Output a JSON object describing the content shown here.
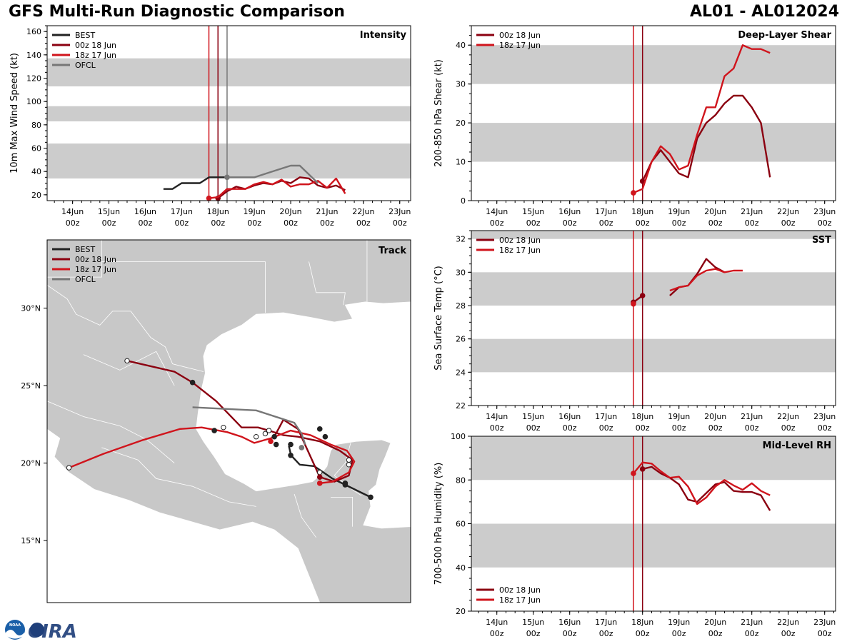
{
  "header": {
    "title": "GFS Multi-Run Diagnostic Comparison",
    "storm": "AL01 - AL012024"
  },
  "colors": {
    "best": "#222222",
    "run_00z": "#8b0010",
    "run_18z": "#d0141c",
    "ofcl": "#777777",
    "band": "#cccccc",
    "land": "#c8c8c8"
  },
  "time_ticks": {
    "day_labels": [
      "14Jun",
      "15Jun",
      "16Jun",
      "17Jun",
      "18Jun",
      "19Jun",
      "20Jun",
      "21Jun",
      "22Jun",
      "23Jun"
    ],
    "hour_label": "00z"
  },
  "logo": {
    "text": "CIRA",
    "seal_text": "NOAA"
  },
  "chart_data": [
    {
      "id": "intensity",
      "type": "line",
      "title": "Intensity",
      "ylabel": "10m Max Wind Speed (kt)",
      "xlim": [
        -0.7,
        9.3
      ],
      "ylim": [
        15,
        165
      ],
      "yticks": [
        20,
        40,
        60,
        80,
        100,
        120,
        140,
        160
      ],
      "bands": [
        [
          34,
          64
        ],
        [
          83,
          96
        ],
        [
          113,
          137
        ]
      ],
      "vlines": [
        {
          "x": 3.75,
          "series": "18z 17 Jun"
        },
        {
          "x": 4.0,
          "series": "00z 18 Jun"
        },
        {
          "x": 4.25,
          "series": "OFCL"
        }
      ],
      "legend": [
        "BEST",
        "00z 18 Jun",
        "18z 17 Jun",
        "OFCL"
      ],
      "series": [
        {
          "name": "BEST",
          "color_key": "best",
          "x": [
            2.5,
            2.75,
            3.0,
            3.25,
            3.5,
            3.75,
            4.0,
            4.25
          ],
          "y": [
            25,
            25,
            30,
            30,
            30,
            35,
            35,
            35
          ]
        },
        {
          "name": "00z 18 Jun",
          "color_key": "run_00z",
          "x": [
            4.0,
            4.25,
            4.5,
            4.75,
            5.0,
            5.25,
            5.5,
            5.75,
            6.0,
            6.25,
            6.5,
            6.75,
            7.0,
            7.25,
            7.5
          ],
          "y": [
            17,
            23,
            27,
            25,
            28,
            30,
            29,
            32,
            30,
            35,
            34,
            28,
            26,
            28,
            24
          ],
          "marker": 17
        },
        {
          "name": "18z 17 Jun",
          "color_key": "run_18z",
          "x": [
            3.75,
            4.0,
            4.25,
            4.5,
            4.75,
            5.0,
            5.25,
            5.5,
            5.75,
            6.0,
            6.25,
            6.5,
            6.75,
            7.0,
            7.25,
            7.5
          ],
          "y": [
            17,
            18,
            25,
            25,
            25,
            29,
            31,
            29,
            33,
            27,
            29,
            29,
            32,
            26,
            34,
            21
          ],
          "marker": 17
        },
        {
          "name": "OFCL",
          "color_key": "ofcl",
          "x": [
            4.25,
            4.5,
            5.0,
            5.5,
            6.0,
            6.25,
            6.75
          ],
          "y": [
            35,
            35,
            35,
            40,
            45,
            45,
            30
          ],
          "marker": 35
        }
      ]
    },
    {
      "id": "shear",
      "type": "line",
      "title": "Deep-Layer Shear",
      "ylabel": "200-850 hPa Shear (kt)",
      "xlim": [
        -0.7,
        9.3
      ],
      "ylim": [
        0,
        45
      ],
      "yticks": [
        0,
        10,
        20,
        30,
        40
      ],
      "bands": [
        [
          10,
          20
        ],
        [
          30,
          40
        ]
      ],
      "vlines": [
        {
          "x": 3.75,
          "series": "18z 17 Jun"
        },
        {
          "x": 4.0,
          "series": "00z 18 Jun"
        }
      ],
      "legend": [
        "00z 18 Jun",
        "18z 17 Jun"
      ],
      "series": [
        {
          "name": "00z 18 Jun",
          "color_key": "run_00z",
          "x": [
            4.0,
            4.25,
            4.5,
            4.75,
            5.0,
            5.25,
            5.5,
            5.75,
            6.0,
            6.25,
            6.5,
            6.75,
            7.0,
            7.25,
            7.5
          ],
          "y": [
            5,
            10,
            13,
            10,
            7,
            6,
            16,
            20,
            22,
            25,
            27,
            27,
            24,
            20,
            6
          ],
          "marker": 5
        },
        {
          "name": "18z 17 Jun",
          "color_key": "run_18z",
          "x": [
            3.75,
            4.0,
            4.25,
            4.5,
            4.75,
            5.0,
            5.25,
            5.5,
            5.75,
            6.0,
            6.25,
            6.5,
            6.75,
            7.0,
            7.25,
            7.5
          ],
          "y": [
            2,
            3,
            10,
            14,
            12,
            8,
            9,
            17,
            24,
            24,
            32,
            34,
            40,
            39,
            39,
            38
          ],
          "marker": 2
        }
      ]
    },
    {
      "id": "sst",
      "type": "line",
      "title": "SST",
      "ylabel": "Sea Surface Temp (°C)",
      "xlim": [
        -0.7,
        9.3
      ],
      "ylim": [
        22,
        32.5
      ],
      "yticks": [
        22,
        24,
        26,
        28,
        30,
        32
      ],
      "bands": [
        [
          24,
          26
        ],
        [
          28,
          30
        ],
        [
          32,
          34
        ]
      ],
      "vlines": [
        {
          "x": 3.75,
          "series": "18z 17 Jun"
        },
        {
          "x": 4.0,
          "series": "00z 18 Jun"
        }
      ],
      "legend": [
        "00z 18 Jun",
        "18z 17 Jun"
      ],
      "series": [
        {
          "name": "00z 18 Jun",
          "color_key": "run_00z",
          "x": [
            3.75,
            4.0
          ],
          "y": [
            28.2,
            28.6
          ],
          "markers": true
        },
        {
          "name": "00z 18 Jun",
          "color_key": "run_00z",
          "x": [
            4.75,
            5.0,
            5.25,
            5.5,
            5.75,
            6.0,
            6.25
          ],
          "y": [
            28.6,
            29.1,
            29.2,
            29.9,
            30.8,
            30.3,
            30.0
          ]
        },
        {
          "name": "18z 17 Jun",
          "color_key": "run_18z",
          "x": [
            3.75
          ],
          "y": [
            28.1
          ],
          "markers": true
        },
        {
          "name": "18z 17 Jun",
          "color_key": "run_18z",
          "x": [
            4.75,
            5.0,
            5.25,
            5.5,
            5.75,
            6.0,
            6.25,
            6.5,
            6.75
          ],
          "y": [
            28.9,
            29.1,
            29.2,
            29.8,
            30.1,
            30.2,
            30.0,
            30.1,
            30.1
          ]
        }
      ]
    },
    {
      "id": "rh",
      "type": "line",
      "title": "Mid-Level RH",
      "ylabel": "700-500 hPa Humidity (%)",
      "xlim": [
        -0.7,
        9.3
      ],
      "ylim": [
        20,
        100
      ],
      "yticks": [
        20,
        40,
        60,
        80,
        100
      ],
      "bands": [
        [
          40,
          60
        ],
        [
          80,
          100
        ]
      ],
      "vlines": [
        {
          "x": 3.75,
          "series": "18z 17 Jun"
        },
        {
          "x": 4.0,
          "series": "00z 18 Jun"
        }
      ],
      "legend": [
        "00z 18 Jun",
        "18z 17 Jun"
      ],
      "series": [
        {
          "name": "00z 18 Jun",
          "color_key": "run_00z",
          "x": [
            4.0,
            4.25,
            4.5,
            4.75,
            5.0,
            5.25,
            5.5,
            5.75,
            6.0,
            6.25,
            6.5,
            6.75,
            7.0,
            7.25,
            7.5
          ],
          "y": [
            85,
            86,
            83,
            81,
            78,
            71,
            70,
            74,
            78,
            79,
            75,
            74.5,
            74.5,
            73,
            66
          ],
          "marker": 85
        },
        {
          "name": "18z 17 Jun",
          "color_key": "run_18z",
          "x": [
            3.75,
            4.0,
            4.25,
            4.5,
            4.75,
            5.0,
            5.25,
            5.5,
            5.75,
            6.0,
            6.25,
            6.5,
            6.75,
            7.0,
            7.25,
            7.5
          ],
          "y": [
            83,
            88,
            87.5,
            84,
            81,
            81.5,
            77,
            69,
            72,
            77,
            80,
            77.5,
            75.5,
            78.5,
            75,
            73
          ],
          "marker": 83
        }
      ]
    },
    {
      "id": "track",
      "type": "scatter",
      "title": "Track",
      "xlim": [
        -106.0,
        -86.0
      ],
      "ylim": [
        11.0,
        34.4
      ],
      "yticks": [
        15,
        20,
        25,
        30
      ],
      "ytick_labels": [
        "15°N",
        "20°N",
        "25°N",
        "30°N"
      ],
      "legend": [
        "BEST",
        "00z 18 Jun",
        "18z 17 Jun",
        "OFCL"
      ],
      "series": [
        {
          "name": "BEST",
          "color_key": "best",
          "lon": [
            -88.2,
            -89.6,
            -90.3,
            -90.8,
            -91.3,
            -92.1,
            -92.5,
            -92.6,
            -92.7
          ],
          "lat": [
            17.8,
            18.6,
            19.0,
            19.4,
            19.8,
            19.9,
            20.4,
            20.6,
            21.1
          ]
        },
        {
          "name": "00z 18 Jun",
          "color_key": "run_00z",
          "lon": [
            -101.6,
            -99.0,
            -98.0,
            -96.7,
            -95.3,
            -94.4,
            -93.8,
            -93.0,
            -92.2,
            -91.0,
            -89.9,
            -89.2,
            -89.3,
            -89.4,
            -90.2,
            -91.0,
            -92.2,
            -93.0,
            -93.5
          ],
          "lat": [
            26.6,
            25.9,
            25.2,
            24.0,
            22.3,
            22.3,
            22.1,
            21.8,
            21.7,
            21.4,
            20.8,
            20.2,
            19.7,
            19.2,
            18.8,
            19.1,
            22.2,
            22.8,
            21.7
          ]
        },
        {
          "name": "18z 17 Jun",
          "color_key": "run_18z",
          "lon": [
            -104.8,
            -102.9,
            -100.7,
            -98.7,
            -97.5,
            -96.1,
            -95.3,
            -94.6,
            -93.7,
            -92.6,
            -91.5,
            -90.4,
            -89.5,
            -89.1,
            -89.4,
            -90.3,
            -91.0
          ],
          "lat": [
            19.7,
            20.6,
            21.5,
            22.2,
            22.3,
            22.0,
            21.7,
            21.3,
            21.6,
            22.1,
            21.8,
            21.2,
            20.8,
            20.1,
            19.4,
            18.8,
            18.7
          ]
        },
        {
          "name": "OFCL",
          "color_key": "ofcl",
          "lon": [
            -98.0,
            -94.5,
            -92.4,
            -92.0,
            -91.8
          ],
          "lat": [
            23.6,
            23.4,
            22.6,
            21.9,
            21.2
          ]
        }
      ],
      "track_markers": [
        {
          "series": "BEST",
          "lon": -88.2,
          "lat": 17.8,
          "fill": "best"
        },
        {
          "series": "BEST",
          "lon": -89.6,
          "lat": 18.6,
          "fill": "best"
        },
        {
          "series": "BEST",
          "lon": -91.0,
          "lat": 19.4,
          "fill": "white"
        },
        {
          "series": "BEST",
          "lon": -92.6,
          "lat": 20.5,
          "fill": "best"
        },
        {
          "series": "BEST",
          "lon": -92.6,
          "lat": 21.2,
          "fill": "best"
        },
        {
          "series": "00z 18 Jun",
          "lon": -101.6,
          "lat": 26.6,
          "fill": "white"
        },
        {
          "series": "00z 18 Jun",
          "lon": -98.0,
          "lat": 25.2,
          "fill": "best"
        },
        {
          "series": "00z 18 Jun",
          "lon": -96.8,
          "lat": 22.1,
          "fill": "best"
        },
        {
          "series": "00z 18 Jun",
          "lon": -94.5,
          "lat": 21.7,
          "fill": "white"
        },
        {
          "series": "00z 18 Jun",
          "lon": -93.5,
          "lat": 21.7,
          "fill": "best"
        },
        {
          "series": "00z 18 Jun",
          "lon": -93.4,
          "lat": 21.2,
          "fill": "best"
        },
        {
          "series": "00z 18 Jun",
          "lon": -91.0,
          "lat": 22.2,
          "fill": "best"
        },
        {
          "series": "00z 18 Jun",
          "lon": -90.7,
          "lat": 21.7,
          "fill": "best"
        },
        {
          "series": "00z 18 Jun",
          "lon": -89.4,
          "lat": 19.9,
          "fill": "white"
        },
        {
          "series": "00z 18 Jun",
          "lon": -89.6,
          "lat": 18.7,
          "fill": "best"
        },
        {
          "series": "00z 18 Jun",
          "lon": -91.0,
          "lat": 19.1,
          "fill": "run_00z"
        },
        {
          "series": "18z 17 Jun",
          "lon": -104.8,
          "lat": 19.7,
          "fill": "white"
        },
        {
          "series": "18z 17 Jun",
          "lon": -96.3,
          "lat": 22.3,
          "fill": "white"
        },
        {
          "series": "18z 17 Jun",
          "lon": -94.0,
          "lat": 21.9,
          "fill": "white"
        },
        {
          "series": "18z 17 Jun",
          "lon": -93.8,
          "lat": 22.1,
          "fill": "white"
        },
        {
          "series": "18z 17 Jun",
          "lon": -93.7,
          "lat": 21.4,
          "fill": "run_18z"
        },
        {
          "series": "18z 17 Jun",
          "lon": -89.4,
          "lat": 20.2,
          "fill": "white"
        },
        {
          "series": "18z 17 Jun",
          "lon": -91.0,
          "lat": 18.7,
          "fill": "run_18z"
        },
        {
          "series": "OFCL",
          "lon": -92.0,
          "lat": 21.0,
          "fill": "ofcl"
        }
      ]
    }
  ]
}
